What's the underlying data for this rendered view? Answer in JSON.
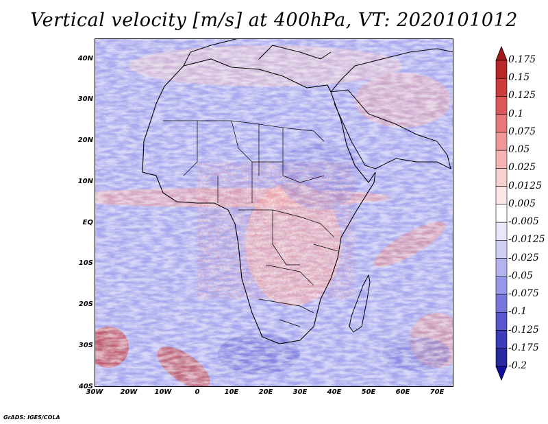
{
  "title": "Vertical velocity [m/s] at 400hPa, VT: 2020101012",
  "credit": "GrADS: IGES/COLA",
  "map": {
    "lat_labels": [
      "40N",
      "30N",
      "20N",
      "10N",
      "EQ",
      "10S",
      "20S",
      "30S",
      "40S"
    ],
    "lon_labels": [
      "30W",
      "20W",
      "10W",
      "0",
      "10E",
      "20E",
      "30E",
      "40E",
      "50E",
      "60E",
      "70E"
    ],
    "extent": {
      "lon_min": -30,
      "lon_max": 75,
      "lat_min": -40,
      "lat_max": 45
    }
  },
  "colorbar": {
    "labels": [
      "0.175",
      "0.15",
      "0.125",
      "0.1",
      "0.075",
      "0.05",
      "0.025",
      "0.0125",
      "0.005",
      "-0.005",
      "-0.0125",
      "-0.025",
      "-0.05",
      "-0.075",
      "-0.1",
      "-0.125",
      "-0.175",
      "-0.2"
    ],
    "colors": [
      "#a01818",
      "#b82828",
      "#cc3c3c",
      "#dc5858",
      "#e87878",
      "#f09898",
      "#f4b4b4",
      "#f8d0d0",
      "#fde8e8",
      "#ffffff",
      "#e8e8fa",
      "#d0d0f6",
      "#b4b4f0",
      "#9898e8",
      "#7878dc",
      "#5858cc",
      "#3c3cb8",
      "#2828a0",
      "#1010a0"
    ]
  }
}
